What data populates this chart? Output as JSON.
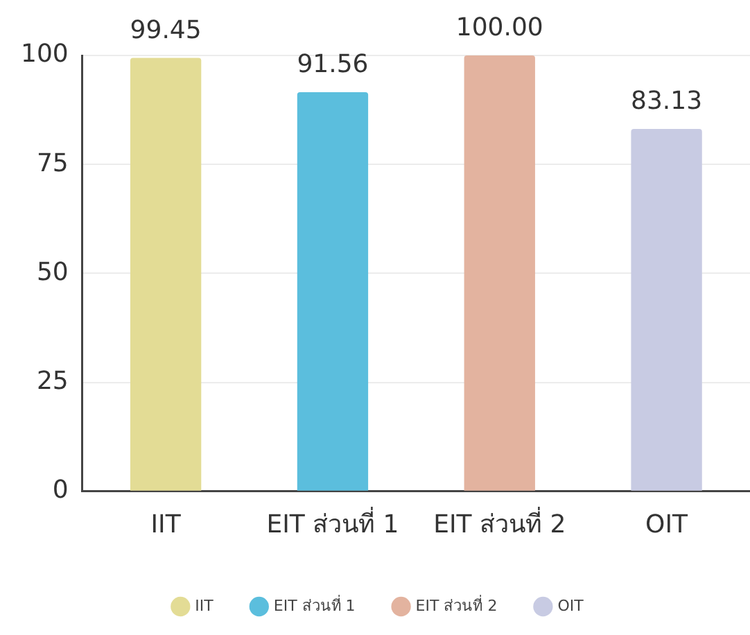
{
  "chart_data": {
    "type": "bar",
    "categories": [
      "IIT",
      "EIT ส่วนที่ 1",
      "EIT ส่วนที่ 2",
      "OIT"
    ],
    "series": [
      {
        "name": "IIT",
        "color": "#e3dc95",
        "values": [
          99.45,
          null,
          null,
          null
        ],
        "value_labels": [
          "99.45",
          null,
          null,
          null
        ]
      },
      {
        "name": "EIT ส่วนที่ 1",
        "color": "#5bbedd",
        "values": [
          null,
          91.56,
          null,
          null
        ],
        "value_labels": [
          null,
          "91.56",
          null,
          null
        ]
      },
      {
        "name": "EIT ส่วนที่ 2",
        "color": "#e3b39f",
        "values": [
          null,
          null,
          100,
          null
        ],
        "value_labels": [
          null,
          null,
          "100.00",
          null
        ]
      },
      {
        "name": "OIT",
        "color": "#c8cbe3",
        "values": [
          null,
          null,
          null,
          83.13
        ],
        "value_labels": [
          null,
          null,
          null,
          "83.13"
        ]
      }
    ],
    "ylim": [
      0,
      100
    ],
    "yticks": [
      0,
      25,
      50,
      75,
      100
    ],
    "grid": "y",
    "legend": "bottom"
  }
}
